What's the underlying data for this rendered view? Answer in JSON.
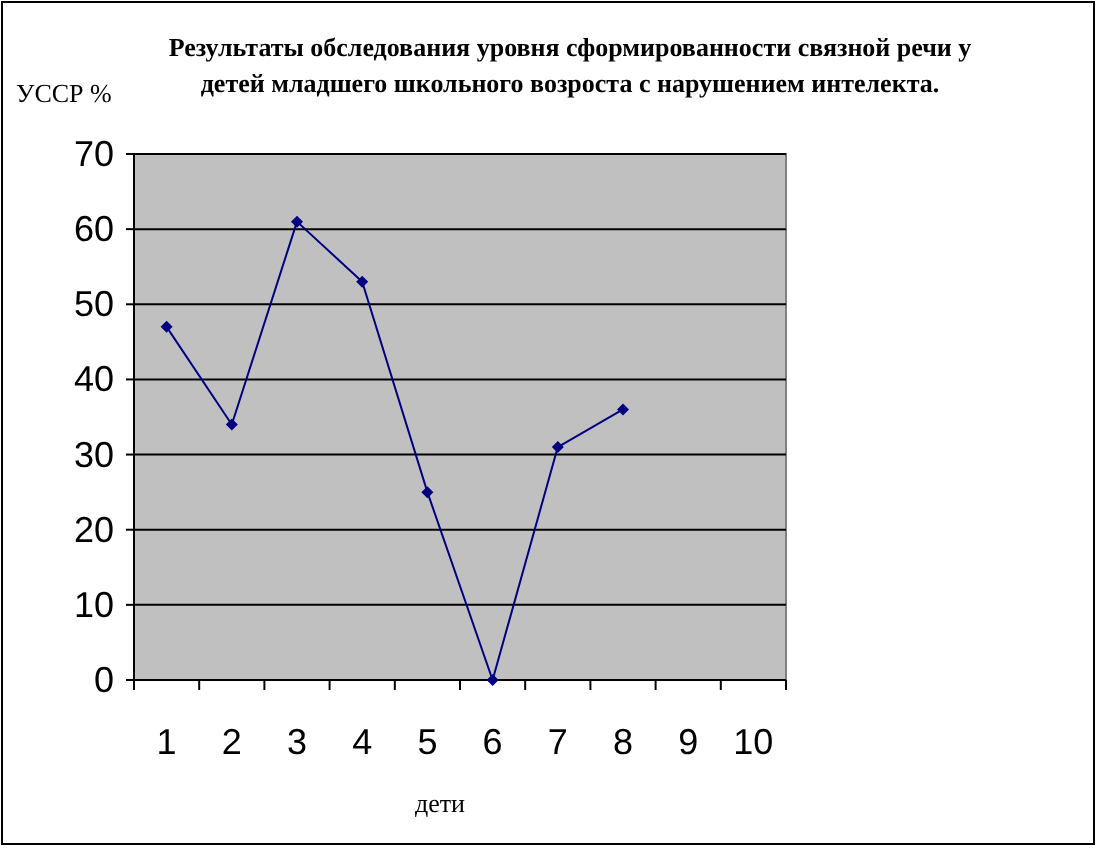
{
  "chart_data": {
    "type": "line",
    "title": "Результаты обследования уровня сформированности связной речи у детей младшего школьного возроста с нарушением интелекта.",
    "ylabel": "УССР %",
    "xlabel": "дети",
    "categories": [
      "1",
      "2",
      "3",
      "4",
      "5",
      "6",
      "7",
      "8",
      "9",
      "10"
    ],
    "series": [
      {
        "color": "#000080",
        "values": [
          47,
          34,
          61,
          53,
          25,
          0,
          31,
          36,
          null,
          null
        ]
      }
    ],
    "ylim": [
      0,
      70
    ],
    "yticks": [
      0,
      10,
      20,
      30,
      40,
      50,
      60,
      70
    ],
    "grid": "y",
    "marker": "diamond"
  }
}
